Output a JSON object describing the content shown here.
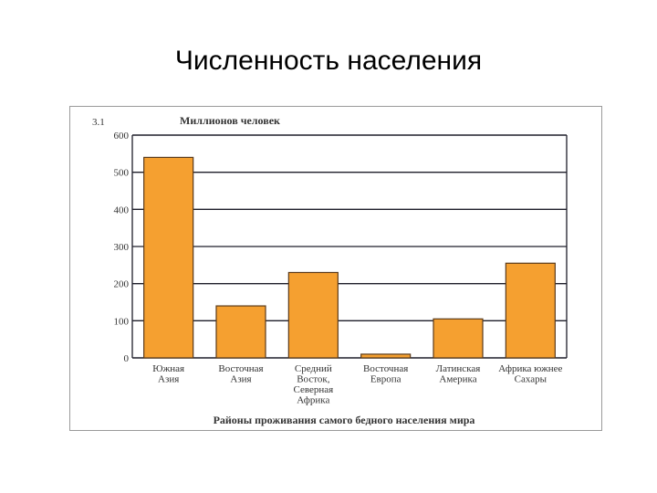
{
  "slide": {
    "title": "Численность населения"
  },
  "figure": {
    "number": "3.1"
  },
  "colors": {
    "bar_fill": "#f5a030",
    "bar_stroke": "#5a3a1a",
    "grid": "#1e1e2a",
    "text": "#333333"
  },
  "chart_data": {
    "type": "bar",
    "title": "",
    "ylabel": "Миллионов человек",
    "xlabel": "Районы проживания самого бедного населения мира",
    "ylim": [
      0,
      600
    ],
    "yticks": [
      "600",
      "500",
      "400",
      "300",
      "200",
      "100",
      "0"
    ],
    "grid": true,
    "categories": [
      [
        "Южная",
        "Азия"
      ],
      [
        "Восточная",
        "Азия"
      ],
      [
        "Средний",
        "Восток,",
        "Северная",
        "Африка"
      ],
      [
        "Восточная",
        "Европа"
      ],
      [
        "Латинская",
        "Америка"
      ],
      [
        "Африка южнее",
        "Сахары"
      ]
    ],
    "values": [
      540,
      140,
      230,
      10,
      105,
      255
    ]
  }
}
